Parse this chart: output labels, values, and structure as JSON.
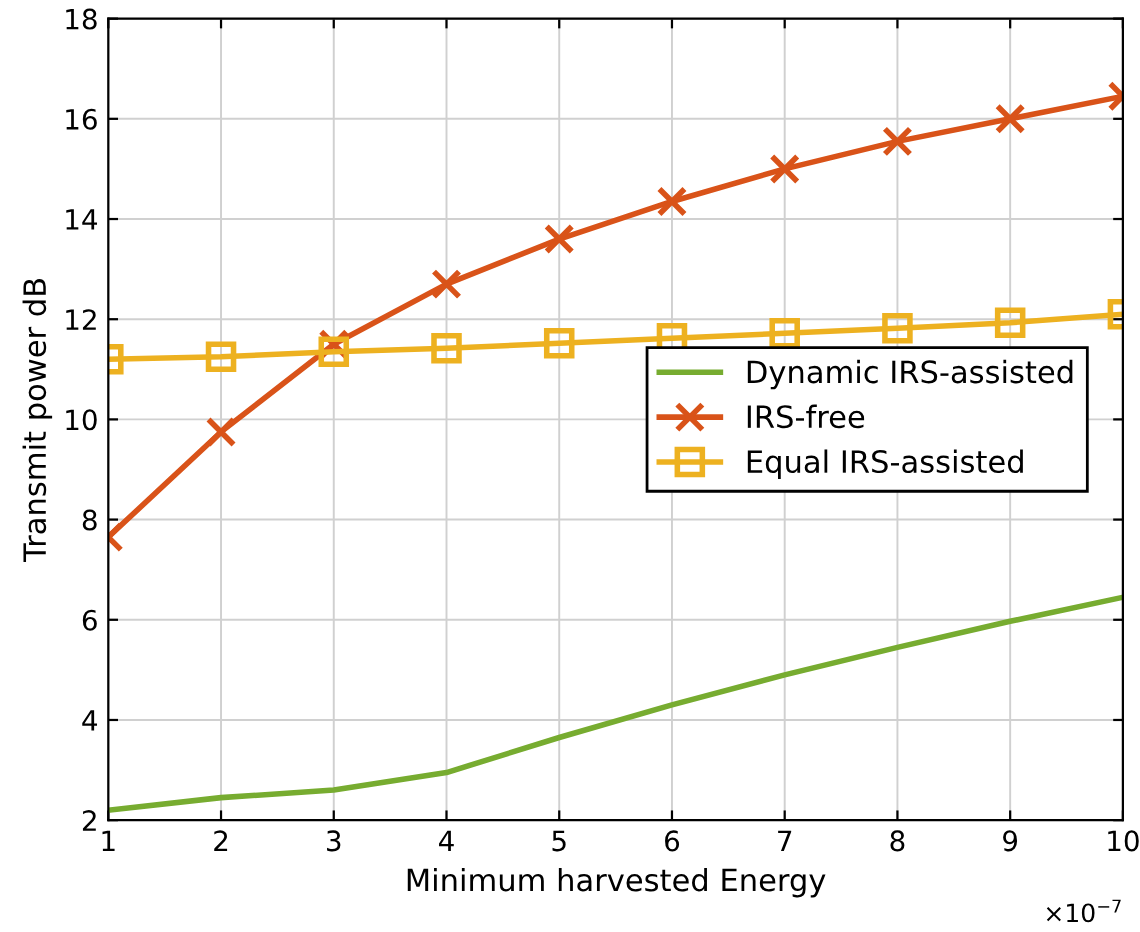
{
  "chart_data": {
    "type": "line",
    "xlabel": "Minimum harvested Energy",
    "ylabel": "Transmit power dB",
    "x": [
      1,
      2,
      3,
      4,
      5,
      6,
      7,
      8,
      9,
      10
    ],
    "series": [
      {
        "name": "Dynamic IRS-assisted",
        "color": "#77ac30",
        "marker": "none",
        "values": [
          2.2,
          2.45,
          2.6,
          2.95,
          3.65,
          4.3,
          4.9,
          5.45,
          5.97,
          6.45
        ]
      },
      {
        "name": "IRS-free",
        "color": "#d95319",
        "marker": "cross",
        "values": [
          7.65,
          9.75,
          11.5,
          12.7,
          13.6,
          14.35,
          15.0,
          15.55,
          16.0,
          16.45
        ]
      },
      {
        "name": "Equal IRS-assisted",
        "color": "#edb120",
        "marker": "square",
        "values": [
          11.2,
          11.25,
          11.35,
          11.42,
          11.52,
          11.62,
          11.72,
          11.82,
          11.93,
          12.1
        ]
      }
    ],
    "xlim": [
      1,
      10
    ],
    "ylim": [
      2,
      18
    ],
    "xticks": [
      1,
      2,
      3,
      4,
      5,
      6,
      7,
      8,
      9,
      10
    ],
    "yticks": [
      2,
      4,
      6,
      8,
      10,
      12,
      14,
      16,
      18
    ],
    "annotations": [
      "×10$^{−7}$"
    ],
    "grid": true,
    "legend": "right",
    "line_style": "solid"
  }
}
